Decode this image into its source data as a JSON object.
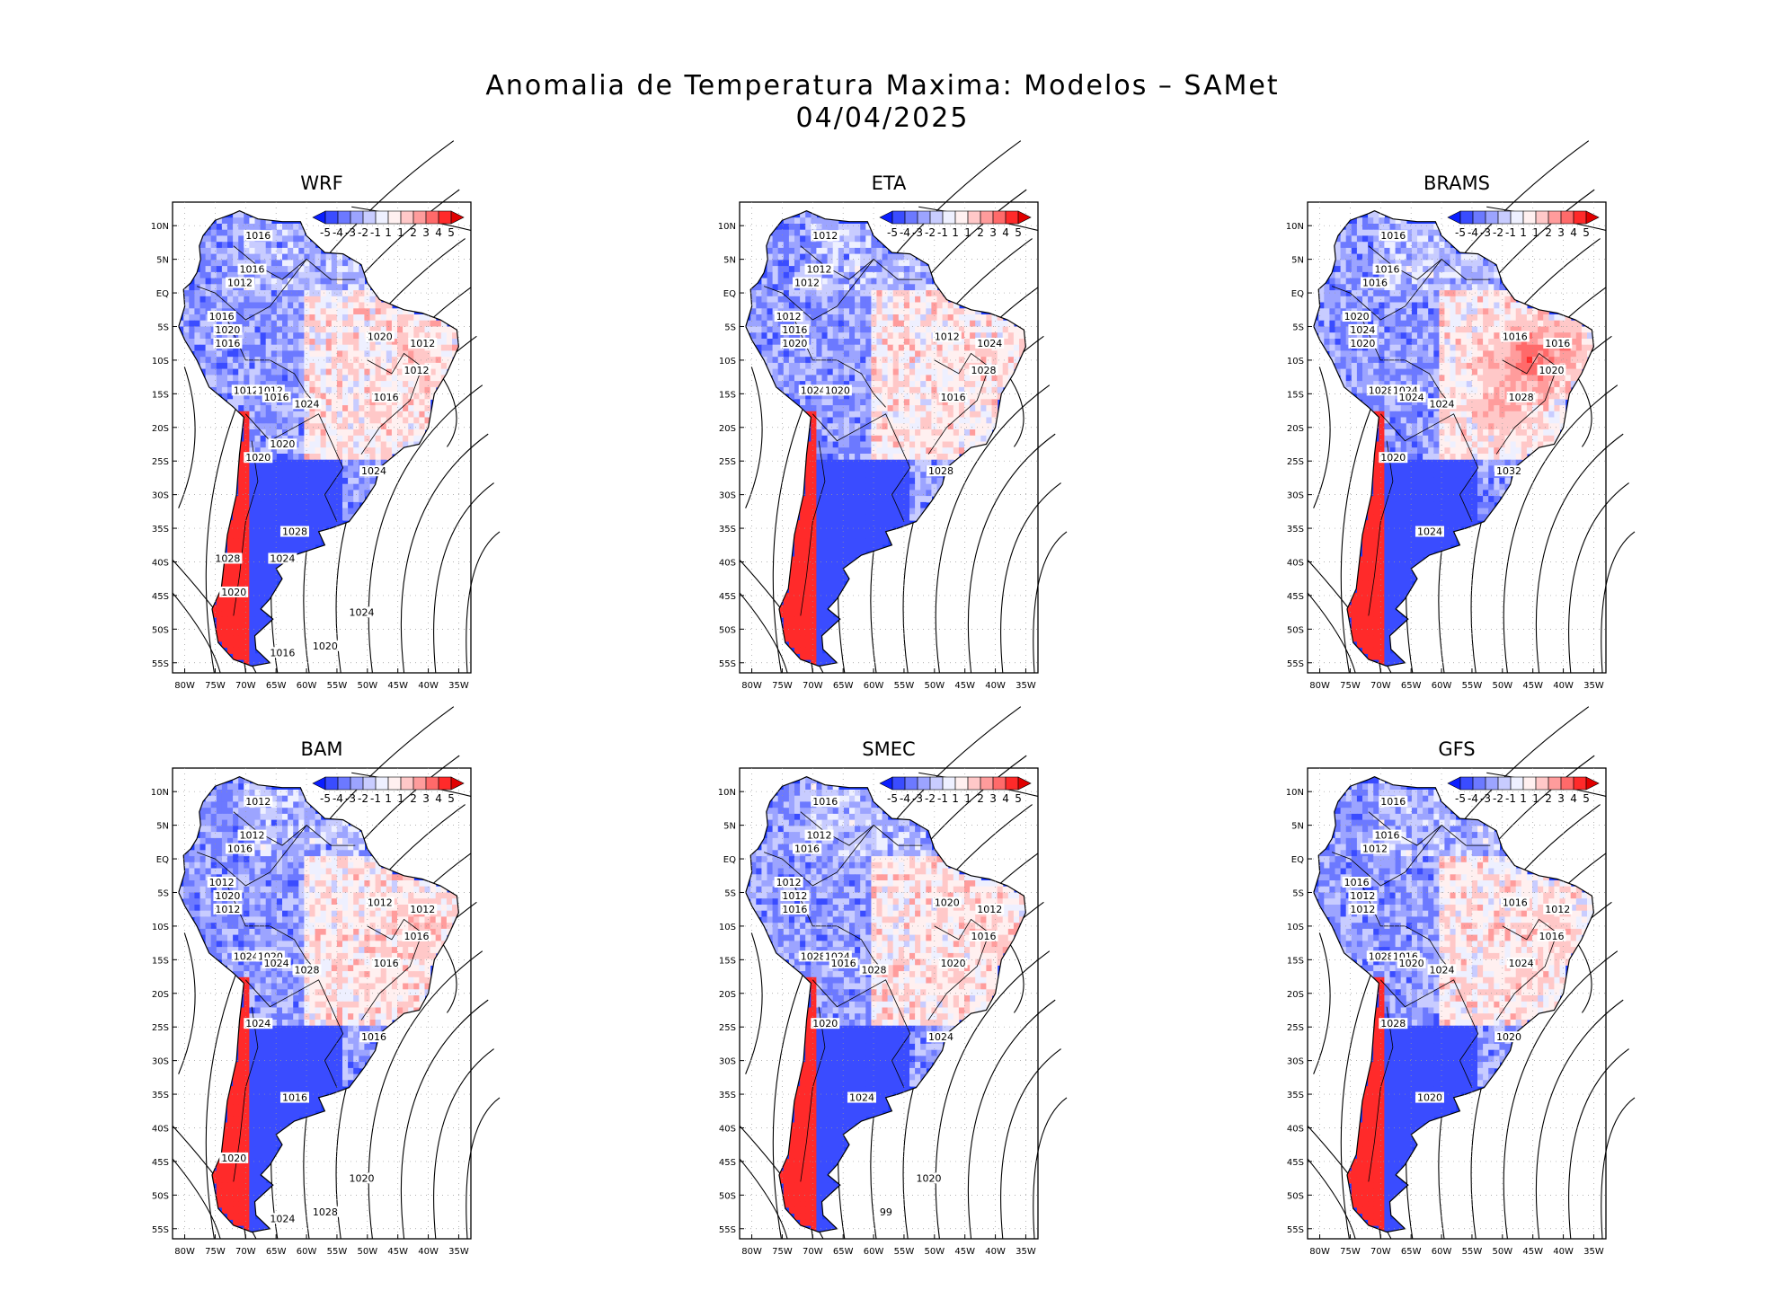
{
  "title": {
    "line1": "Anomalia de Temperatura Maxima: Modelos – SAMet",
    "line2": "04/04/2025"
  },
  "colorbar": {
    "labels": [
      "-5",
      "-4",
      "-3",
      "-2",
      "-1",
      "1",
      "1",
      "2",
      "3",
      "4",
      "5"
    ],
    "colors": [
      "#0a1eff",
      "#3a4cff",
      "#6c79ff",
      "#9ca4ff",
      "#c8ccff",
      "#eef0ff",
      "#fff0f0",
      "#ffc8c8",
      "#ff9c9c",
      "#ff6a6a",
      "#ff2a2a",
      "#e00000"
    ]
  },
  "axes": {
    "lat_labels": [
      "10N",
      "5N",
      "EQ",
      "5S",
      "10S",
      "15S",
      "20S",
      "25S",
      "30S",
      "35S",
      "40S",
      "45S",
      "50S",
      "55S"
    ],
    "lon_labels": [
      "80W",
      "75W",
      "70W",
      "65W",
      "60W",
      "55W",
      "50W",
      "45W",
      "40W",
      "35W"
    ]
  },
  "panels": [
    {
      "name": "WRF",
      "warm": "moderate",
      "isobars": [
        "1016",
        "1016",
        "1012",
        "1016",
        "1020",
        "1016",
        "1020",
        "1012",
        "1012",
        "1016",
        "1024",
        "1012",
        "1012",
        "1016",
        "1020",
        "1024",
        "1028",
        "1024",
        "1020",
        "1016",
        "1020",
        "1028",
        "1024",
        "1020"
      ]
    },
    {
      "name": "ETA",
      "warm": "weak",
      "isobars": [
        "1012",
        "1012",
        "1012",
        "1012",
        "1016",
        "1020",
        "1012",
        "1024",
        "1028",
        "1016",
        "1028",
        "1024",
        "1020"
      ]
    },
    {
      "name": "BRAMS",
      "warm": "strong",
      "isobars": [
        "1016",
        "1016",
        "1016",
        "1020",
        "1024",
        "1020",
        "1016",
        "1016",
        "1020",
        "1028",
        "1032",
        "1028",
        "1024",
        "1024",
        "1020",
        "1024",
        "1024"
      ]
    },
    {
      "name": "BAM",
      "warm": "moderate",
      "isobars": [
        "1012",
        "1012",
        "1016",
        "1012",
        "1020",
        "1012",
        "1012",
        "1012",
        "1016",
        "1016",
        "1016",
        "1024",
        "1020",
        "1024",
        "1024",
        "1028",
        "1016",
        "1020",
        "1028",
        "1024",
        "1020"
      ]
    },
    {
      "name": "SMEC",
      "warm": "moderate",
      "isobars": [
        "1016",
        "1012",
        "1016",
        "1012",
        "1012",
        "1016",
        "1020",
        "1012",
        "1016",
        "1020",
        "1024",
        "1028",
        "1024",
        "1016",
        "1020",
        "1028",
        "1024",
        "1020",
        "99"
      ]
    },
    {
      "name": "GFS",
      "warm": "moderate",
      "isobars": [
        "1016",
        "1016",
        "1012",
        "1016",
        "1012",
        "1012",
        "1016",
        "1012",
        "1016",
        "1024",
        "1020",
        "1028",
        "1016",
        "1020",
        "1028",
        "1024",
        "1020"
      ]
    }
  ]
}
